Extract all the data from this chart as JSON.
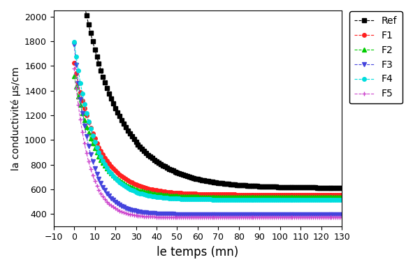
{
  "title": "",
  "xlabel": "le temps (mn)",
  "ylabel": "la conductivité µs/cm",
  "xlim": [
    -10,
    130
  ],
  "ylim": [
    300,
    2050
  ],
  "xticks": [
    -10,
    0,
    10,
    20,
    30,
    40,
    50,
    60,
    70,
    80,
    90,
    100,
    110,
    120,
    130
  ],
  "yticks": [
    400,
    600,
    800,
    1000,
    1200,
    1400,
    1600,
    1800,
    2000
  ],
  "series": {
    "Ref": {
      "color": "black",
      "linestyle": "--",
      "marker": "s",
      "markersize": 4,
      "t_start": 0,
      "t_end": 130,
      "t_step": 1,
      "A": 1950,
      "B": 0.055,
      "C": 610
    },
    "F1": {
      "color": "#ff2020",
      "linestyle": "--",
      "marker": "o",
      "markersize": 4,
      "t_start": 0,
      "t_end": 130,
      "t_step": 1,
      "A": 1070,
      "B": 0.085,
      "C": 555
    },
    "F2": {
      "color": "#00cc00",
      "linestyle": "--",
      "marker": "^",
      "markersize": 4,
      "t_start": 0,
      "t_end": 130,
      "t_step": 1,
      "A": 980,
      "B": 0.09,
      "C": 535
    },
    "F3": {
      "color": "#4444dd",
      "linestyle": "--",
      "marker": "v",
      "markersize": 4,
      "t_start": 0,
      "t_end": 130,
      "t_step": 1,
      "A": 1380,
      "B": 0.13,
      "C": 395
    },
    "F4": {
      "color": "#00dddd",
      "linestyle": "--",
      "marker": "o",
      "markersize": 4,
      "t_start": 0,
      "t_end": 130,
      "t_step": 1,
      "A": 1280,
      "B": 0.1,
      "C": 515
    },
    "F5": {
      "color": "#cc44cc",
      "linestyle": "--",
      "marker": "+",
      "markersize": 4,
      "t_start": 0,
      "t_end": 130,
      "t_step": 1,
      "A": 1210,
      "B": 0.14,
      "C": 370
    }
  },
  "legend_labels": [
    "Ref",
    "F1",
    "F2",
    "F3",
    "F4",
    "F5"
  ],
  "figsize": [
    5.91,
    3.85
  ],
  "dpi": 100
}
